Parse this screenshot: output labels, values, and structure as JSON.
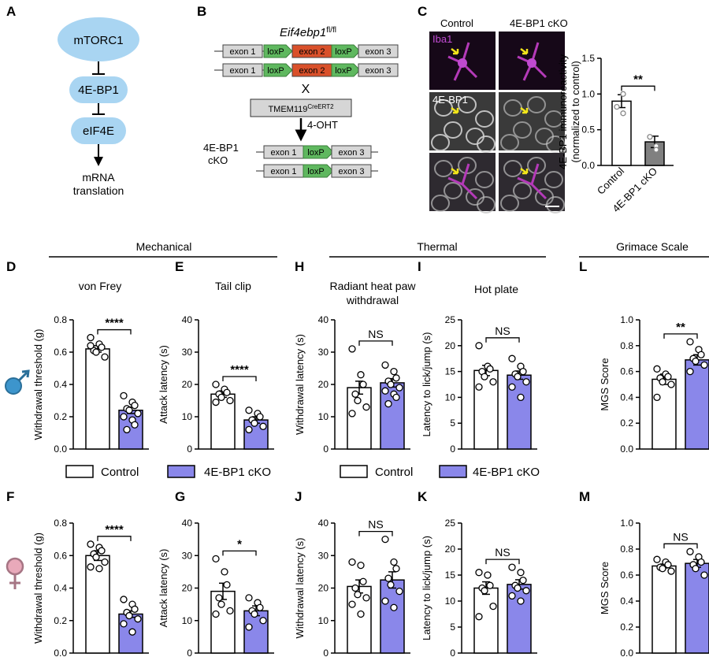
{
  "figure": {
    "panel_letters": {
      "A": "A",
      "B": "B",
      "C": "C",
      "D": "D",
      "E": "E",
      "H": "H",
      "I": "I",
      "L": "L",
      "F": "F",
      "G": "G",
      "J": "J",
      "K": "K",
      "M": "M"
    },
    "section_headers": {
      "mechanical": "Mechanical",
      "thermal": "Thermal",
      "grimace": "Grimace Scale"
    },
    "legend": {
      "control": "Control",
      "cko": "4E-BP1 cKO"
    },
    "colors": {
      "control_fill": "#ffffff",
      "cko_fill": "#8a87ea",
      "stroke": "#000000",
      "bubble": "#a9d5f2",
      "male": "#3d95cc",
      "female": "#e9a9ba",
      "exon_red": "#d9502a",
      "loxp_green": "#5fb85f",
      "exon_gray": "#d6d6d6"
    }
  },
  "panel_a": {
    "nodes": [
      "mTORC1",
      "4E-BP1",
      "eIF4E"
    ],
    "output_line1": "mRNA",
    "output_line2": "translation"
  },
  "panel_b": {
    "title_base": "Eif4ebp1",
    "title_sup": "fl/fl",
    "exon1": "exon 1",
    "exon2": "exon 2",
    "exon3": "exon 3",
    "loxp": "loxP",
    "cross": "X",
    "cre_base": "TMEM119",
    "cre_sup": "CreERT2",
    "treatment": "4-OHT",
    "cko_line1": "4E-BP1",
    "cko_line2": "cKO"
  },
  "panel_c": {
    "col_control": "Control",
    "col_cko": "4E-BP1 cKO",
    "row_iba1": "Iba1",
    "row_4ebp1": "4E-BP1"
  },
  "chart_data": [
    {
      "id": "C",
      "type": "bar",
      "ylabel": "4E-BP1 immunoreactivity (normalized to control)",
      "ylabel_line1": "4E-BP1 immunoreactivity",
      "ylabel_line2": "(normalized to control)",
      "ylim": [
        0,
        1.5
      ],
      "ticks": [
        "0.0",
        "0.5",
        "1.0",
        "1.5"
      ],
      "tick_values": [
        0,
        0.5,
        1,
        1.5
      ],
      "categories": [
        "Control",
        "4E-BP1 cKO"
      ],
      "values": [
        0.9,
        0.33
      ],
      "errors": [
        0.09,
        0.08
      ],
      "points": [
        [
          0.82,
          1.0,
          0.73
        ],
        [
          0.4,
          0.27,
          0.22
        ]
      ],
      "sig": "**",
      "fills": [
        "#ffffff",
        "#808080"
      ]
    },
    {
      "id": "D",
      "type": "bar",
      "title": "von Frey",
      "ylabel": "Withdrawal threshold (g)",
      "ylim": [
        0,
        0.8
      ],
      "ticks": [
        "0.0",
        "0.2",
        "0.4",
        "0.6",
        "0.8"
      ],
      "tick_values": [
        0,
        0.2,
        0.4,
        0.6,
        0.8
      ],
      "categories": [
        "Control",
        "4E-BP1 cKO"
      ],
      "values": [
        0.62,
        0.24
      ],
      "errors": [
        0.02,
        0.02
      ],
      "points": [
        [
          0.69,
          0.65,
          0.63,
          0.61,
          0.6,
          0.57,
          0.64
        ],
        [
          0.33,
          0.29,
          0.27,
          0.25,
          0.24,
          0.22,
          0.2,
          0.18,
          0.15,
          0.12
        ]
      ],
      "sig": "****"
    },
    {
      "id": "E",
      "type": "bar",
      "title": "Tail clip",
      "ylabel": "Attack latency (s)",
      "ylim": [
        0,
        40
      ],
      "ticks": [
        "0",
        "10",
        "20",
        "30",
        "40"
      ],
      "tick_values": [
        0,
        10,
        20,
        30,
        40
      ],
      "categories": [
        "Control",
        "4E-BP1 cKO"
      ],
      "values": [
        17,
        9
      ],
      "errors": [
        1,
        1
      ],
      "points": [
        [
          20,
          18.5,
          17.5,
          17,
          16,
          15,
          14.5
        ],
        [
          12,
          11,
          10,
          9,
          8,
          7,
          6
        ]
      ],
      "sig": "****"
    },
    {
      "id": "H",
      "type": "bar",
      "title_line1": "Radiant heat paw",
      "title_line2": "withdrawal",
      "ylabel": "Withdrawal latency (s)",
      "ylim": [
        0,
        40
      ],
      "ticks": [
        "0",
        "10",
        "20",
        "30",
        "40"
      ],
      "tick_values": [
        0,
        10,
        20,
        30,
        40
      ],
      "categories": [
        "Control",
        "4E-BP1 cKO"
      ],
      "values": [
        19,
        20.5
      ],
      "errors": [
        2,
        1.3
      ],
      "points": [
        [
          31,
          23,
          20,
          17,
          15,
          13,
          11
        ],
        [
          26,
          24,
          22,
          21,
          20,
          19,
          18,
          17,
          16,
          14
        ]
      ],
      "sig": "NS"
    },
    {
      "id": "I",
      "type": "bar",
      "title": "Hot plate",
      "ylabel": "Latency to lick/jump (s)",
      "ylim": [
        0,
        25
      ],
      "ticks": [
        "0",
        "5",
        "10",
        "15",
        "20",
        "25"
      ],
      "tick_values": [
        0,
        5,
        10,
        15,
        20,
        25
      ],
      "categories": [
        "Control",
        "4E-BP1 cKO"
      ],
      "values": [
        15.2,
        14.3
      ],
      "errors": [
        1,
        0.8
      ],
      "points": [
        [
          20,
          16,
          15.5,
          15,
          14,
          13,
          12
        ],
        [
          17.5,
          16,
          15,
          14.5,
          14,
          13,
          12,
          10
        ]
      ],
      "sig": "NS"
    },
    {
      "id": "L",
      "type": "bar",
      "ylabel": "MGS Score",
      "ylim": [
        0,
        1.0
      ],
      "ticks": [
        "0.0",
        "0.2",
        "0.4",
        "0.6",
        "0.8",
        "1.0"
      ],
      "tick_values": [
        0,
        0.2,
        0.4,
        0.6,
        0.8,
        1.0
      ],
      "categories": [
        "Control",
        "4E-BP1 cKO"
      ],
      "values": [
        0.54,
        0.69
      ],
      "errors": [
        0.04,
        0.04
      ],
      "points": [
        [
          0.62,
          0.58,
          0.56,
          0.55,
          0.52,
          0.5,
          0.4
        ],
        [
          0.83,
          0.77,
          0.73,
          0.7,
          0.68,
          0.65,
          0.6
        ]
      ],
      "sig": "**"
    },
    {
      "id": "F",
      "type": "bar",
      "ylabel": "Withdrawal threshold (g)",
      "ylim": [
        0,
        0.8
      ],
      "ticks": [
        "0.0",
        "0.2",
        "0.4",
        "0.6",
        "0.8"
      ],
      "tick_values": [
        0,
        0.2,
        0.4,
        0.6,
        0.8
      ],
      "categories": [
        "Control",
        "4E-BP1 cKO"
      ],
      "values": [
        0.6,
        0.24
      ],
      "errors": [
        0.03,
        0.02
      ],
      "points": [
        [
          0.67,
          0.65,
          0.63,
          0.61,
          0.59,
          0.56,
          0.53,
          0.52
        ],
        [
          0.33,
          0.3,
          0.27,
          0.25,
          0.23,
          0.21,
          0.18,
          0.13
        ]
      ],
      "sig": "****"
    },
    {
      "id": "G",
      "type": "bar",
      "ylabel": "Attack latency (s)",
      "ylim": [
        0,
        40
      ],
      "ticks": [
        "0",
        "10",
        "20",
        "30",
        "40"
      ],
      "tick_values": [
        0,
        10,
        20,
        30,
        40
      ],
      "categories": [
        "Control",
        "4E-BP1 cKO"
      ],
      "values": [
        19,
        13
      ],
      "errors": [
        2.5,
        1.5
      ],
      "points": [
        [
          29,
          25,
          21,
          17,
          15,
          13,
          12
        ],
        [
          17,
          15.5,
          14,
          13,
          12,
          10,
          8
        ]
      ],
      "sig": "*"
    },
    {
      "id": "J",
      "type": "bar",
      "ylabel": "Withdrawal latency (s)",
      "ylim": [
        0,
        40
      ],
      "ticks": [
        "0",
        "10",
        "20",
        "30",
        "40"
      ],
      "tick_values": [
        0,
        10,
        20,
        30,
        40
      ],
      "categories": [
        "Control",
        "4E-BP1 cKO"
      ],
      "values": [
        20.5,
        22.5
      ],
      "errors": [
        2,
        2.5
      ],
      "points": [
        [
          28,
          27,
          22,
          20,
          18,
          17,
          15,
          12
        ],
        [
          35,
          28,
          26,
          23,
          21,
          19,
          16,
          14
        ]
      ],
      "sig": "NS"
    },
    {
      "id": "K",
      "type": "bar",
      "ylabel": "Latency to lick/jump (s)",
      "ylim": [
        0,
        25
      ],
      "ticks": [
        "0",
        "5",
        "10",
        "15",
        "20",
        "25"
      ],
      "tick_values": [
        0,
        5,
        10,
        15,
        20,
        25
      ],
      "categories": [
        "Control",
        "4E-BP1 cKO"
      ],
      "values": [
        12.5,
        13.2
      ],
      "errors": [
        1.2,
        0.9
      ],
      "points": [
        [
          15.5,
          15,
          13,
          12.5,
          12,
          9,
          7
        ],
        [
          16.5,
          15.5,
          14,
          13,
          12.5,
          12,
          11,
          10
        ]
      ],
      "sig": "NS"
    },
    {
      "id": "M",
      "type": "bar",
      "ylabel": "MGS Score",
      "ylim": [
        0,
        1.0
      ],
      "ticks": [
        "0.0",
        "0.2",
        "0.4",
        "0.6",
        "0.8",
        "1.0"
      ],
      "tick_values": [
        0,
        0.2,
        0.4,
        0.6,
        0.8,
        1.0
      ],
      "categories": [
        "Control",
        "4E-BP1 cKO"
      ],
      "values": [
        0.67,
        0.69
      ],
      "errors": [
        0.015,
        0.03
      ],
      "points": [
        [
          0.72,
          0.7,
          0.68,
          0.66,
          0.65,
          0.63
        ],
        [
          0.78,
          0.74,
          0.7,
          0.68,
          0.65,
          0.6
        ]
      ],
      "sig": "NS"
    }
  ]
}
